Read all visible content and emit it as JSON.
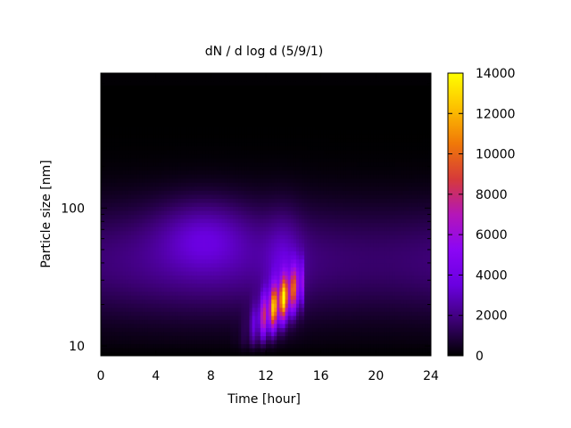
{
  "chart_data": {
    "type": "heatmap",
    "title": "dN / d log d (5/9/1)",
    "xlabel": "Time [hour]",
    "ylabel": "Particle size [nm]",
    "xlim": [
      0,
      24
    ],
    "xticks": [
      0,
      4,
      8,
      12,
      16,
      20,
      24
    ],
    "y_scale": "log",
    "ylim": [
      8.5,
      950
    ],
    "yticks": [
      10,
      100
    ],
    "colorbar": {
      "range": [
        0,
        14000
      ],
      "ticks": [
        0,
        2000,
        4000,
        6000,
        8000,
        10000,
        12000,
        14000
      ],
      "colormap": [
        "#000000",
        "#3c0074",
        "#6a00e0",
        "#8b06f5",
        "#b416b8",
        "#d63a3a",
        "#f07808",
        "#fdc000",
        "#ffff00"
      ]
    },
    "grid": false,
    "features": [
      {
        "label": "background mode",
        "time_hours": [
          0,
          24
        ],
        "size_nm": [
          20,
          100
        ],
        "value": 3000
      },
      {
        "label": "accumulation mode",
        "time_hours": 7.5,
        "size_nm": 65,
        "value": 4200
      },
      {
        "label": "nucleation burst",
        "time_hours": [
          10,
          14.5
        ],
        "size_nm": [
          10,
          30
        ],
        "peak_time_hours": 13,
        "peak_size_nm": 18,
        "peak_value": 12500
      }
    ]
  }
}
